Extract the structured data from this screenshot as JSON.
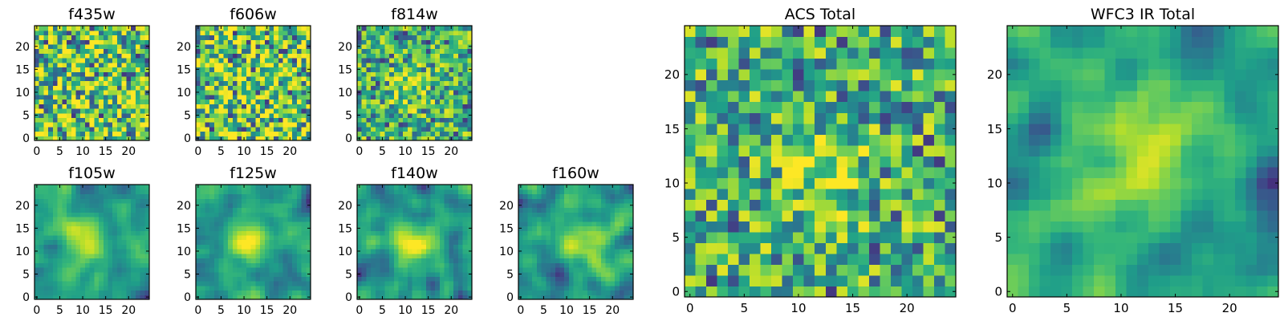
{
  "chart_data": [
    {
      "type": "heatmap",
      "title": "f435w",
      "colormap": "viridis",
      "grid": false,
      "xlim": [
        0,
        24
      ],
      "ylim": [
        0,
        24
      ],
      "xticks": [
        0,
        5,
        10,
        15,
        20
      ],
      "yticks": [
        0,
        5,
        10,
        15,
        20
      ],
      "pattern": "noise",
      "seed": 11,
      "blob": null
    },
    {
      "type": "heatmap",
      "title": "f606w",
      "colormap": "viridis",
      "grid": false,
      "xlim": [
        0,
        24
      ],
      "ylim": [
        0,
        24
      ],
      "xticks": [
        0,
        5,
        10,
        15,
        20
      ],
      "yticks": [
        0,
        5,
        10,
        15,
        20
      ],
      "pattern": "noise",
      "seed": 23,
      "blob": null
    },
    {
      "type": "heatmap",
      "title": "f814w",
      "colormap": "viridis",
      "grid": false,
      "xlim": [
        0,
        24
      ],
      "ylim": [
        0,
        24
      ],
      "xticks": [
        0,
        5,
        10,
        15,
        20
      ],
      "yticks": [
        0,
        5,
        10,
        15,
        20
      ],
      "pattern": "noise",
      "seed": 37,
      "blob": [
        11,
        11
      ]
    },
    {
      "type": "heatmap",
      "title": "f105w",
      "colormap": "viridis",
      "grid": false,
      "xlim": [
        0,
        24
      ],
      "ylim": [
        0,
        24
      ],
      "xticks": [
        0,
        5,
        10,
        15,
        20
      ],
      "yticks": [
        0,
        5,
        10,
        15,
        20
      ],
      "pattern": "smooth",
      "seed": 41,
      "blob": [
        11,
        12
      ]
    },
    {
      "type": "heatmap",
      "title": "f125w",
      "colormap": "viridis",
      "grid": false,
      "xlim": [
        0,
        24
      ],
      "ylim": [
        0,
        24
      ],
      "xticks": [
        0,
        5,
        10,
        15,
        20
      ],
      "yticks": [
        0,
        5,
        10,
        15,
        20
      ],
      "pattern": "smooth",
      "seed": 53,
      "blob": [
        11,
        12
      ]
    },
    {
      "type": "heatmap",
      "title": "f140w",
      "colormap": "viridis",
      "grid": false,
      "xlim": [
        0,
        24
      ],
      "ylim": [
        0,
        24
      ],
      "xticks": [
        0,
        5,
        10,
        15,
        20
      ],
      "yticks": [
        0,
        5,
        10,
        15,
        20
      ],
      "pattern": "smooth",
      "seed": 67,
      "blob": [
        12,
        12
      ]
    },
    {
      "type": "heatmap",
      "title": "f160w",
      "colormap": "viridis",
      "grid": false,
      "xlim": [
        0,
        24
      ],
      "ylim": [
        0,
        24
      ],
      "xticks": [
        0,
        5,
        10,
        15,
        20
      ],
      "yticks": [
        0,
        5,
        10,
        15,
        20
      ],
      "pattern": "smooth",
      "seed": 79,
      "blob": [
        13,
        12
      ]
    },
    {
      "type": "heatmap",
      "title": "ACS Total",
      "colormap": "viridis",
      "grid": false,
      "xlim": [
        0,
        24
      ],
      "ylim": [
        0,
        24
      ],
      "xticks": [
        0,
        5,
        10,
        15,
        20
      ],
      "yticks": [
        0,
        5,
        10,
        15,
        20
      ],
      "pattern": "noise",
      "seed": 97,
      "blob": [
        12,
        11
      ]
    },
    {
      "type": "heatmap",
      "title": "WFC3 IR Total",
      "colormap": "viridis",
      "grid": false,
      "xlim": [
        0,
        24
      ],
      "ylim": [
        0,
        24
      ],
      "xticks": [
        0,
        5,
        10,
        15,
        20
      ],
      "yticks": [
        0,
        5,
        10,
        15,
        20
      ],
      "pattern": "smooth",
      "seed": 113,
      "blob": [
        12,
        12
      ]
    }
  ]
}
